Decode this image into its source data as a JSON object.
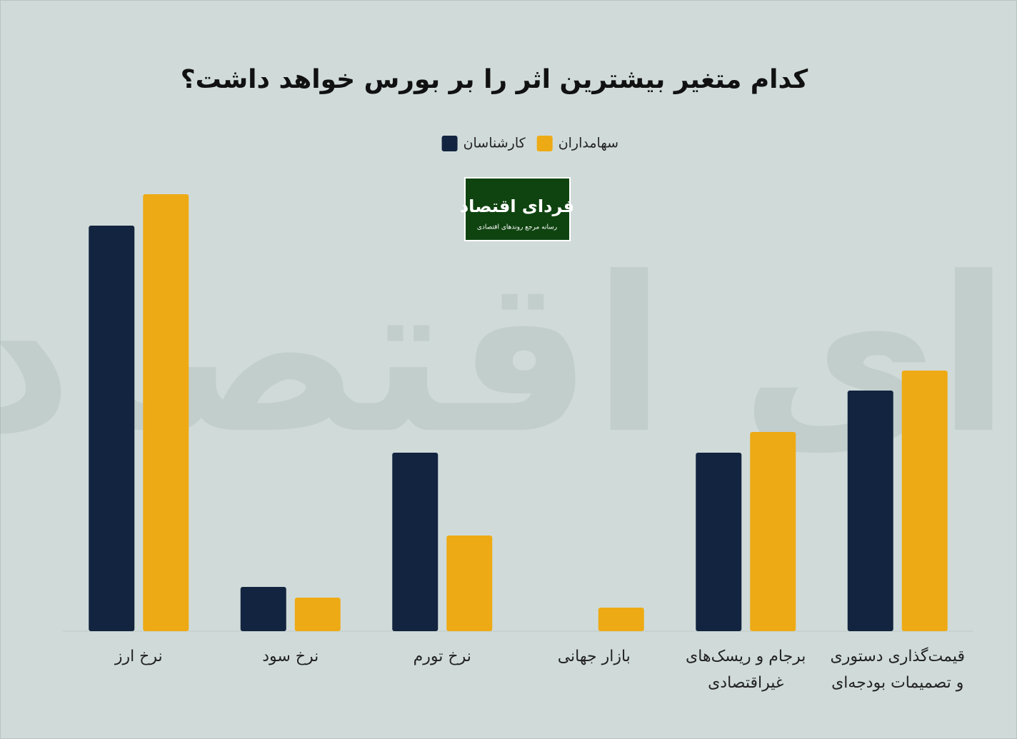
{
  "chart_data": {
    "type": "bar",
    "title": "کدام متغیر بیشترین اثر را بر بورس خواهد داشت؟",
    "categories": [
      [
        "نرخ ارز"
      ],
      [
        "نرخ سود"
      ],
      [
        "نرخ تورم"
      ],
      [
        "بازار جهانی"
      ],
      [
        "برجام و ریسک‌های",
        "غیراقتصادی"
      ],
      [
        "قیمت‌گذاری دستوری",
        "و تصمیمات بودجه‌ای"
      ]
    ],
    "series": [
      {
        "name": "کارشناسان",
        "color": "#12243f",
        "values": [
          568,
          62,
          250,
          0,
          250,
          337
        ]
      },
      {
        "name": "سهامداران",
        "color": "#eeaa14",
        "values": [
          612,
          47,
          134,
          33,
          279,
          365
        ]
      }
    ],
    "ylim": [
      0,
      640
    ]
  },
  "logo": {
    "title": "فردای اقتصاد",
    "subtitle": "رسانه مرجع روندهای اقتصادی"
  }
}
